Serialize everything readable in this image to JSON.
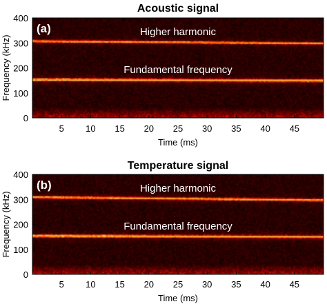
{
  "chart_data": [
    {
      "type": "heatmap",
      "title": "Acoustic signal",
      "panel_label": "(a)",
      "xlabel": "Time (ms)",
      "ylabel": "Frequency (kHz)",
      "xlim": [
        0,
        50
      ],
      "ylim": [
        0,
        400
      ],
      "x_ticks": [
        5,
        10,
        15,
        20,
        25,
        30,
        35,
        40,
        45
      ],
      "y_ticks": [
        0,
        100,
        200,
        300,
        400
      ],
      "colormap": [
        "#000000",
        "#3a0000",
        "#8b0000",
        "#d81500",
        "#ff5a00",
        "#ffe060"
      ],
      "bands": [
        {
          "label": "Higher harmonic",
          "freq_start": 307,
          "freq_end": 298,
          "intensity": 0.75
        },
        {
          "label": "Fundamental frequency",
          "freq_start": 153,
          "freq_end": 149,
          "intensity": 1.0
        }
      ],
      "background_note": "broadband noise strongest below 40 kHz"
    },
    {
      "type": "heatmap",
      "title": "Temperature signal",
      "panel_label": "(b)",
      "xlabel": "Time (ms)",
      "ylabel": "Frequency (kHz)",
      "xlim": [
        0,
        50
      ],
      "ylim": [
        0,
        400
      ],
      "x_ticks": [
        5,
        10,
        15,
        20,
        25,
        30,
        35,
        40,
        45
      ],
      "y_ticks": [
        0,
        100,
        200,
        300,
        400
      ],
      "colormap": [
        "#000000",
        "#3a0000",
        "#8b0000",
        "#d81500",
        "#ff5a00",
        "#ffe060"
      ],
      "bands": [
        {
          "label": "Higher harmonic",
          "freq_start": 309,
          "freq_end": 297,
          "intensity": 0.8
        },
        {
          "label": "Fundamental frequency",
          "freq_start": 154,
          "freq_end": 150,
          "intensity": 0.95
        }
      ],
      "background_note": "broadband noise strongest below 40 kHz"
    }
  ]
}
